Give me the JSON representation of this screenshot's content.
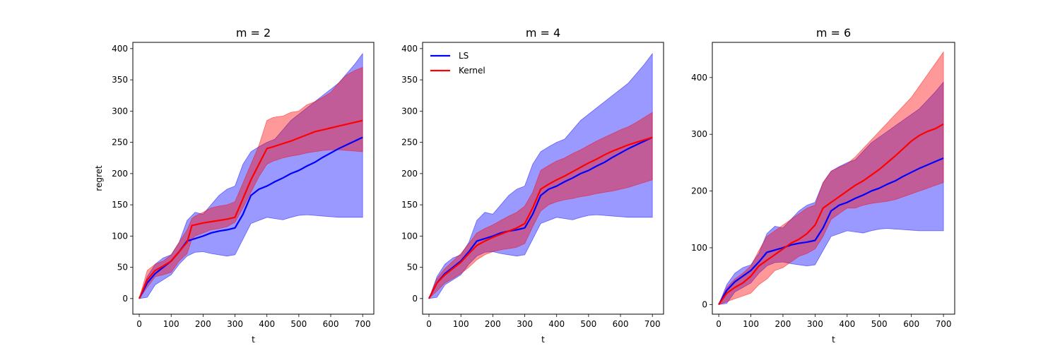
{
  "chart_data": [
    {
      "type": "line",
      "title": "m = 2",
      "xlabel": "t",
      "ylabel": "regret",
      "xlim": [
        -20,
        735
      ],
      "ylim": [
        -25,
        410
      ],
      "xticks": [
        0,
        100,
        200,
        300,
        400,
        500,
        600,
        700
      ],
      "yticks": [
        0,
        50,
        100,
        150,
        200,
        250,
        300,
        350,
        400
      ],
      "legend": null,
      "series": [
        {
          "name": "LS",
          "color": "#0000ff",
          "x": [
            0,
            25,
            50,
            75,
            100,
            125,
            150,
            175,
            200,
            225,
            250,
            275,
            300,
            325,
            350,
            375,
            400,
            425,
            450,
            475,
            500,
            525,
            550,
            575,
            600,
            625,
            650,
            675,
            700
          ],
          "mean": [
            0,
            25,
            40,
            50,
            60,
            75,
            92,
            96,
            100,
            105,
            108,
            110,
            113,
            135,
            165,
            175,
            180,
            187,
            193,
            200,
            205,
            212,
            218,
            226,
            233,
            240,
            246,
            252,
            258
          ],
          "lower": [
            0,
            2,
            22,
            30,
            38,
            55,
            68,
            74,
            75,
            72,
            70,
            68,
            70,
            95,
            120,
            125,
            130,
            128,
            126,
            130,
            133,
            134,
            133,
            132,
            131,
            130,
            130,
            130,
            130
          ],
          "upper": [
            0,
            35,
            55,
            65,
            70,
            90,
            125,
            138,
            135,
            150,
            165,
            175,
            180,
            215,
            235,
            243,
            250,
            255,
            270,
            285,
            295,
            305,
            315,
            325,
            335,
            345,
            360,
            375,
            392
          ]
        },
        {
          "name": "Kernel",
          "color": "#ff0000",
          "x": [
            0,
            25,
            50,
            75,
            100,
            125,
            150,
            165,
            175,
            200,
            225,
            250,
            275,
            300,
            325,
            350,
            375,
            400,
            420,
            450,
            475,
            500,
            525,
            550,
            575,
            600,
            625,
            650,
            675,
            700
          ],
          "mean": [
            0,
            30,
            45,
            52,
            60,
            75,
            90,
            117,
            118,
            121,
            123,
            125,
            127,
            130,
            160,
            190,
            215,
            240,
            243,
            248,
            252,
            257,
            262,
            267,
            270,
            273,
            276,
            279,
            282,
            285
          ],
          "lower": [
            0,
            18,
            35,
            38,
            42,
            60,
            72,
            95,
            100,
            105,
            110,
            112,
            115,
            122,
            145,
            170,
            195,
            215,
            220,
            225,
            228,
            230,
            233,
            235,
            237,
            238,
            238,
            237,
            236,
            235
          ],
          "upper": [
            0,
            45,
            55,
            60,
            70,
            90,
            110,
            128,
            132,
            138,
            145,
            148,
            150,
            155,
            185,
            215,
            245,
            285,
            290,
            292,
            298,
            300,
            310,
            315,
            322,
            330,
            345,
            358,
            365,
            370
          ]
        }
      ]
    },
    {
      "type": "line",
      "title": "m = 4",
      "xlabel": "t",
      "ylabel": "",
      "xlim": [
        -20,
        735
      ],
      "ylim": [
        -25,
        410
      ],
      "xticks": [
        0,
        100,
        200,
        300,
        400,
        500,
        600,
        700
      ],
      "yticks": [
        0,
        50,
        100,
        150,
        200,
        250,
        300,
        350,
        400
      ],
      "legend": "top-left",
      "series": [
        {
          "name": "LS",
          "color": "#0000ff",
          "x": [
            0,
            25,
            50,
            75,
            100,
            125,
            150,
            175,
            200,
            225,
            250,
            275,
            300,
            325,
            350,
            375,
            400,
            425,
            450,
            475,
            500,
            525,
            550,
            575,
            600,
            625,
            650,
            675,
            700
          ],
          "mean": [
            0,
            25,
            40,
            50,
            60,
            75,
            92,
            96,
            100,
            105,
            108,
            110,
            113,
            135,
            165,
            175,
            180,
            187,
            193,
            200,
            205,
            212,
            218,
            226,
            233,
            240,
            246,
            252,
            258
          ],
          "lower": [
            0,
            2,
            22,
            30,
            38,
            55,
            68,
            74,
            75,
            72,
            70,
            68,
            70,
            95,
            120,
            125,
            130,
            128,
            126,
            130,
            133,
            134,
            133,
            132,
            131,
            130,
            130,
            130,
            130
          ],
          "upper": [
            0,
            35,
            55,
            65,
            70,
            90,
            125,
            138,
            135,
            150,
            165,
            175,
            180,
            215,
            235,
            243,
            250,
            255,
            270,
            285,
            295,
            305,
            315,
            325,
            335,
            345,
            360,
            375,
            392
          ]
        },
        {
          "name": "Kernel",
          "color": "#ff0000",
          "x": [
            0,
            25,
            50,
            75,
            100,
            125,
            150,
            175,
            200,
            225,
            250,
            275,
            300,
            325,
            350,
            375,
            400,
            425,
            450,
            475,
            500,
            525,
            550,
            575,
            600,
            625,
            650,
            675,
            700
          ],
          "mean": [
            0,
            25,
            38,
            48,
            58,
            72,
            85,
            92,
            98,
            103,
            108,
            113,
            120,
            145,
            175,
            183,
            190,
            196,
            203,
            210,
            217,
            223,
            230,
            236,
            241,
            246,
            250,
            254,
            258
          ],
          "lower": [
            0,
            12,
            25,
            32,
            40,
            50,
            62,
            70,
            75,
            78,
            80,
            82,
            88,
            115,
            140,
            150,
            155,
            158,
            160,
            163,
            165,
            168,
            170,
            172,
            175,
            178,
            182,
            186,
            190
          ],
          "upper": [
            0,
            32,
            48,
            60,
            72,
            88,
            105,
            112,
            118,
            125,
            132,
            138,
            148,
            170,
            205,
            213,
            220,
            225,
            232,
            238,
            245,
            252,
            258,
            264,
            270,
            275,
            282,
            290,
            298
          ]
        }
      ]
    },
    {
      "type": "line",
      "title": "m = 6",
      "xlabel": "t",
      "ylabel": "",
      "xlim": [
        -20,
        735
      ],
      "ylim": [
        -17,
        462
      ],
      "xticks": [
        0,
        100,
        200,
        300,
        400,
        500,
        600,
        700
      ],
      "yticks": [
        0,
        100,
        200,
        300,
        400
      ],
      "legend": null,
      "series": [
        {
          "name": "LS",
          "color": "#0000ff",
          "x": [
            0,
            25,
            50,
            75,
            100,
            125,
            150,
            175,
            200,
            225,
            250,
            275,
            300,
            325,
            350,
            375,
            400,
            425,
            450,
            475,
            500,
            525,
            550,
            575,
            600,
            625,
            650,
            675,
            700
          ],
          "mean": [
            0,
            25,
            40,
            50,
            60,
            75,
            92,
            96,
            100,
            105,
            108,
            110,
            113,
            135,
            165,
            175,
            180,
            187,
            193,
            200,
            205,
            212,
            218,
            226,
            233,
            240,
            246,
            252,
            258
          ],
          "lower": [
            0,
            2,
            22,
            30,
            38,
            55,
            68,
            74,
            75,
            72,
            70,
            68,
            70,
            95,
            120,
            125,
            130,
            128,
            126,
            130,
            133,
            134,
            133,
            132,
            131,
            130,
            130,
            130,
            130
          ],
          "upper": [
            0,
            35,
            55,
            65,
            70,
            90,
            125,
            138,
            135,
            150,
            165,
            175,
            180,
            215,
            235,
            243,
            250,
            255,
            270,
            285,
            295,
            305,
            315,
            325,
            335,
            345,
            360,
            375,
            392
          ]
        },
        {
          "name": "Kernel",
          "color": "#ff0000",
          "x": [
            0,
            25,
            50,
            75,
            100,
            125,
            150,
            175,
            200,
            225,
            250,
            275,
            300,
            325,
            350,
            375,
            400,
            425,
            450,
            475,
            500,
            525,
            550,
            575,
            600,
            625,
            650,
            675,
            700
          ],
          "mean": [
            0,
            20,
            30,
            38,
            50,
            68,
            78,
            88,
            98,
            108,
            115,
            125,
            140,
            170,
            180,
            190,
            200,
            210,
            218,
            228,
            238,
            250,
            262,
            275,
            288,
            298,
            305,
            310,
            318
          ],
          "lower": [
            0,
            5,
            10,
            15,
            20,
            35,
            45,
            60,
            65,
            75,
            85,
            90,
            98,
            120,
            150,
            160,
            170,
            170,
            175,
            178,
            180,
            182,
            185,
            190,
            195,
            200,
            205,
            210,
            215
          ],
          "upper": [
            0,
            30,
            45,
            55,
            68,
            95,
            120,
            130,
            140,
            150,
            160,
            170,
            175,
            215,
            235,
            242,
            248,
            260,
            275,
            290,
            305,
            320,
            335,
            350,
            365,
            385,
            405,
            425,
            445
          ]
        }
      ]
    }
  ]
}
